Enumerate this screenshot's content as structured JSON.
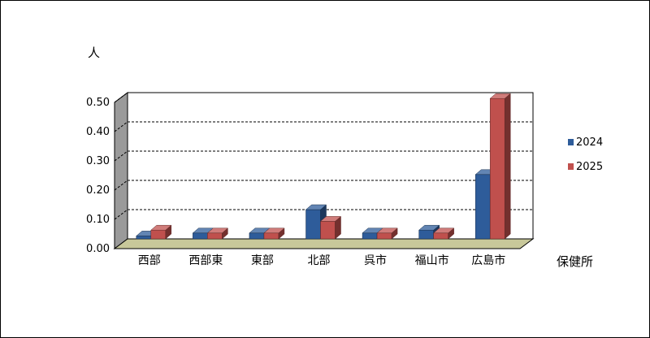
{
  "chart_data": {
    "type": "bar",
    "title": "",
    "ylabel": "人",
    "xlabel": "保健所",
    "categories": [
      "西部",
      "西部東",
      "東部",
      "北部",
      "呉市",
      "福山市",
      "広島市"
    ],
    "series": [
      {
        "name": "2024",
        "values": [
          0.01,
          0.02,
          0.02,
          0.1,
          0.02,
          0.03,
          0.22
        ],
        "color": "#2E5C9A"
      },
      {
        "name": "2025",
        "values": [
          0.03,
          0.02,
          0.02,
          0.06,
          0.02,
          0.02,
          0.48
        ],
        "color": "#C0504D"
      }
    ],
    "ylim": [
      0,
      0.5
    ],
    "yticks": [
      "0.00",
      "0.10",
      "0.20",
      "0.30",
      "0.40",
      "0.50"
    ],
    "grid": true,
    "legend_position": "right",
    "style": "3d-clustered-column"
  }
}
